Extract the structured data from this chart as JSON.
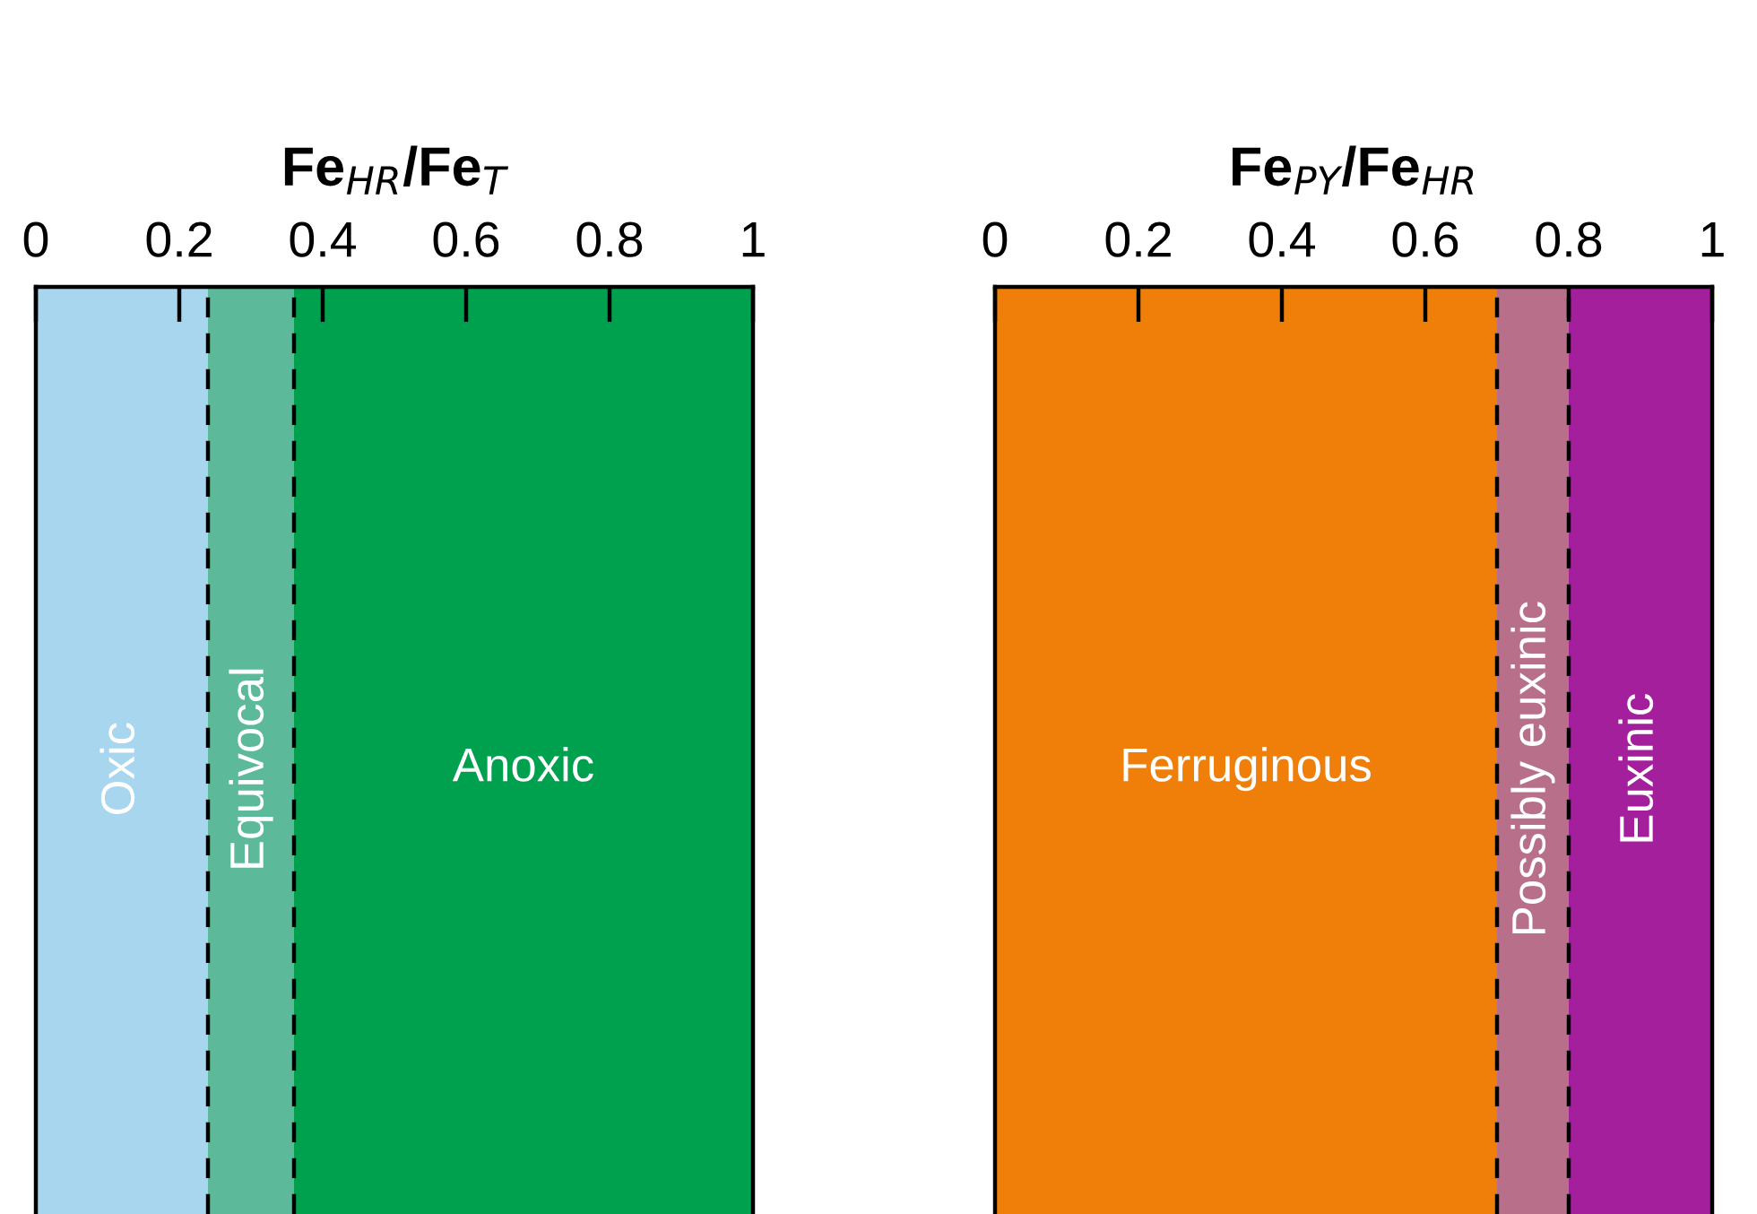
{
  "chart_data": [
    {
      "type": "bar",
      "orientation": "horizontal",
      "stacked": true,
      "title": "Fe$_{HR}$/Fe$_{T}$",
      "categories": [
        null
      ],
      "xlim": [
        0,
        1
      ],
      "xticks": [
        0,
        0.2,
        0.4,
        0.6,
        0.8,
        1
      ],
      "tick_labels": "x",
      "series": [
        {
          "name": "Oxic",
          "color": "#a9d6ef",
          "values": [
            0.24
          ]
        },
        {
          "name": "Equivocal",
          "color": "#5cb99a",
          "values": [
            0.12
          ]
        },
        {
          "name": "Anoxic",
          "color": "#00a14e",
          "values": [
            0.64
          ]
        }
      ],
      "ref_lines": [
        {
          "axis": "x",
          "value": 0.24,
          "line_style": "dashed",
          "color": "#000000"
        },
        {
          "axis": "x",
          "value": 0.36,
          "line_style": "dashed",
          "color": "#000000"
        }
      ]
    },
    {
      "type": "bar",
      "orientation": "horizontal",
      "stacked": true,
      "title": "Fe$_{PY}$/Fe$_{HR}$",
      "categories": [
        null
      ],
      "xlim": [
        0,
        1
      ],
      "xticks": [
        0,
        0.2,
        0.4,
        0.6,
        0.8,
        1
      ],
      "tick_labels": "x",
      "series": [
        {
          "name": "Ferruginous",
          "color": "#f07f09",
          "values": [
            0.7
          ]
        },
        {
          "name": "Possibly euxinic",
          "color": "#b8708a",
          "values": [
            0.1
          ]
        },
        {
          "name": "Euxinic",
          "color": "#a31f9c",
          "values": [
            0.2
          ]
        }
      ],
      "ref_lines": [
        {
          "axis": "x",
          "value": 0.7,
          "line_style": "dashed",
          "color": "#000000"
        },
        {
          "axis": "x",
          "value": 0.8,
          "line_style": "dashed",
          "color": "#000000"
        }
      ]
    }
  ]
}
